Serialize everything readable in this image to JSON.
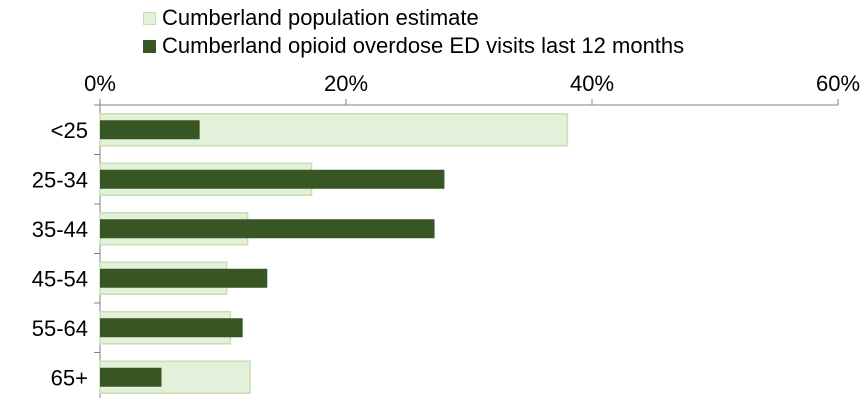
{
  "chart_data": {
    "type": "bar",
    "orientation": "horizontal",
    "categories": [
      "<25",
      "25-34",
      "35-44",
      "45-54",
      "55-64",
      "65+"
    ],
    "series": [
      {
        "name": "Cumberland population estimate",
        "color": "#e3f0da",
        "border_color": "#c6e0b4",
        "values": [
          38,
          17.2,
          12,
          10.3,
          10.6,
          12.2
        ]
      },
      {
        "name": "Cumberland opioid overdose ED visits last 12 months",
        "color": "#375623",
        "values": [
          8.1,
          28,
          27.2,
          13.6,
          11.6,
          5
        ]
      }
    ],
    "x_ticks": [
      "0%",
      "20%",
      "40%",
      "60%"
    ],
    "xlim": [
      0,
      60
    ],
    "legend_position": "top",
    "grid": false
  }
}
